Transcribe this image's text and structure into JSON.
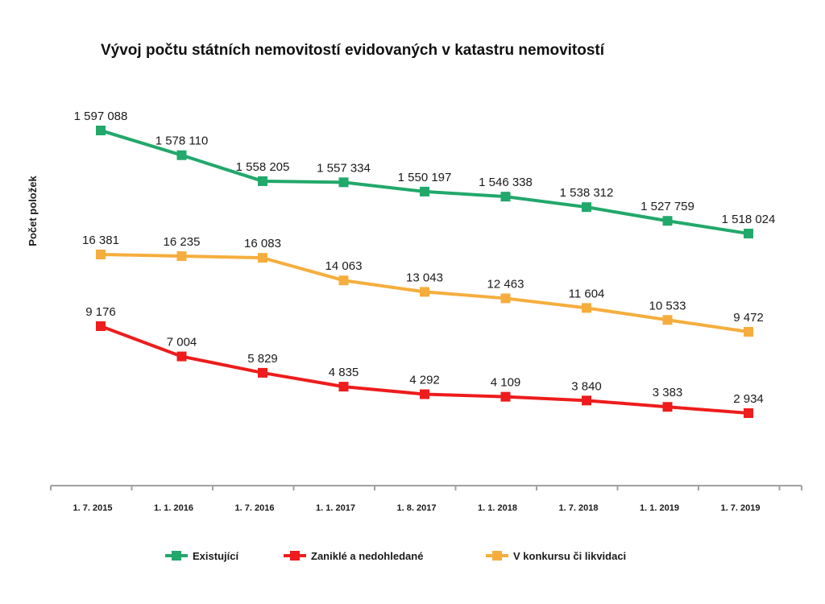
{
  "chart_data": {
    "type": "line",
    "title": "Vývoj počtu státních nemovitostí evidovaných v katastru nemovitostí",
    "ylabel": "Počet položek",
    "xlabel": "",
    "categories": [
      "1. 7. 2015",
      "1. 1. 2016",
      "1. 7. 2016",
      "1. 1. 2017",
      "1. 8. 2017",
      "1. 1. 2018",
      "1. 7. 2018",
      "1. 1. 2019",
      "1. 7. 2019"
    ],
    "grid": false,
    "legend_position": "bottom",
    "series": [
      {
        "name": "Existující",
        "color": "#21a86b",
        "values": [
          1597088,
          1578110,
          1558205,
          1557334,
          1550197,
          1546338,
          1538312,
          1527759,
          1518024
        ],
        "labels": [
          "1 597 088",
          "1 578 110",
          "1 558 205",
          "1 557 334",
          "1 550 197",
          "1 546 338",
          "1 538 312",
          "1 527 759",
          "1 518 024"
        ]
      },
      {
        "name": "Zaniklé a nedohledané",
        "color": "#ee1c1c",
        "values": [
          9176,
          7004,
          5829,
          4835,
          4292,
          4109,
          3840,
          3383,
          2934
        ],
        "labels": [
          "9 176",
          "7 004",
          "5 829",
          "4 835",
          "4 292",
          "4 109",
          "3 840",
          "3 383",
          "2 934"
        ]
      },
      {
        "name": "V konkursu či likvidaci",
        "color": "#f5ae3d",
        "values": [
          16381,
          16235,
          16083,
          14063,
          13043,
          12463,
          11604,
          10533,
          9472
        ],
        "labels": [
          "16 381",
          "16 235",
          "16 083",
          "14 063",
          "13 043",
          "12 463",
          "11 604",
          "10 533",
          "9 472"
        ]
      }
    ],
    "axis_color": "#a0a0a0"
  }
}
